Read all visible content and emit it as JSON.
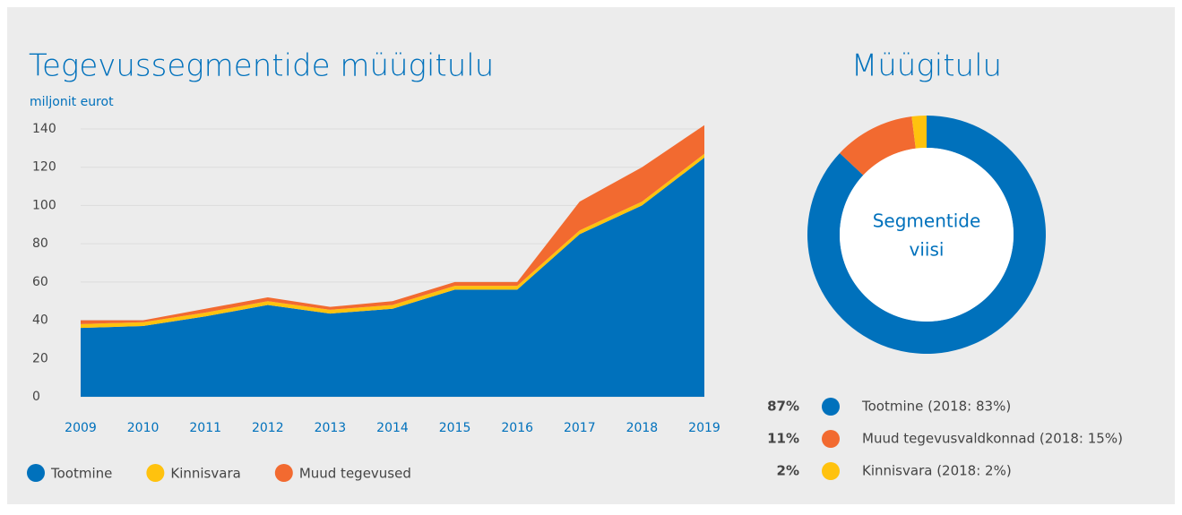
{
  "chart_data": [
    {
      "type": "area",
      "title": "Tegevussegmentide müügitulu",
      "y_label": "miljonit eurot",
      "categories": [
        "2009",
        "2010",
        "2011",
        "2012",
        "2013",
        "2014",
        "2015",
        "2016",
        "2017",
        "2018",
        "2019"
      ],
      "stacked": true,
      "series": [
        {
          "name": "Tootmine",
          "color": "#0071bc",
          "values": [
            36,
            37,
            42,
            48,
            43.5,
            46,
            56,
            56,
            85,
            100,
            125
          ]
        },
        {
          "name": "Kinnisvara",
          "color": "#ffc20e",
          "values": [
            2,
            2,
            2,
            2,
            2,
            2,
            2,
            2,
            2,
            2,
            2
          ]
        },
        {
          "name": "Muud tegevused",
          "color": "#f26a30",
          "values": [
            2,
            1,
            2,
            2,
            1.5,
            2,
            2,
            2,
            15,
            18,
            15
          ]
        }
      ],
      "ylim": [
        0,
        140
      ],
      "yticks": [
        0,
        20,
        40,
        60,
        80,
        100,
        120,
        140
      ],
      "grid": true,
      "legend": "bottom"
    },
    {
      "type": "donut",
      "title": "Müügitulu",
      "center_label": [
        "Segmentide",
        "viisi"
      ],
      "categories": [
        "Tootmine (2018: 83%)",
        "Muud tegevusvaldkonnad (2018: 15%)",
        "Kinnisvara (2018: 2%)"
      ],
      "values": [
        87,
        11,
        2
      ],
      "value_labels": [
        "87%",
        "11%",
        "2%"
      ],
      "colors": [
        "#0071bc",
        "#f26a30",
        "#ffc20e"
      ],
      "legend": "bottom"
    }
  ]
}
